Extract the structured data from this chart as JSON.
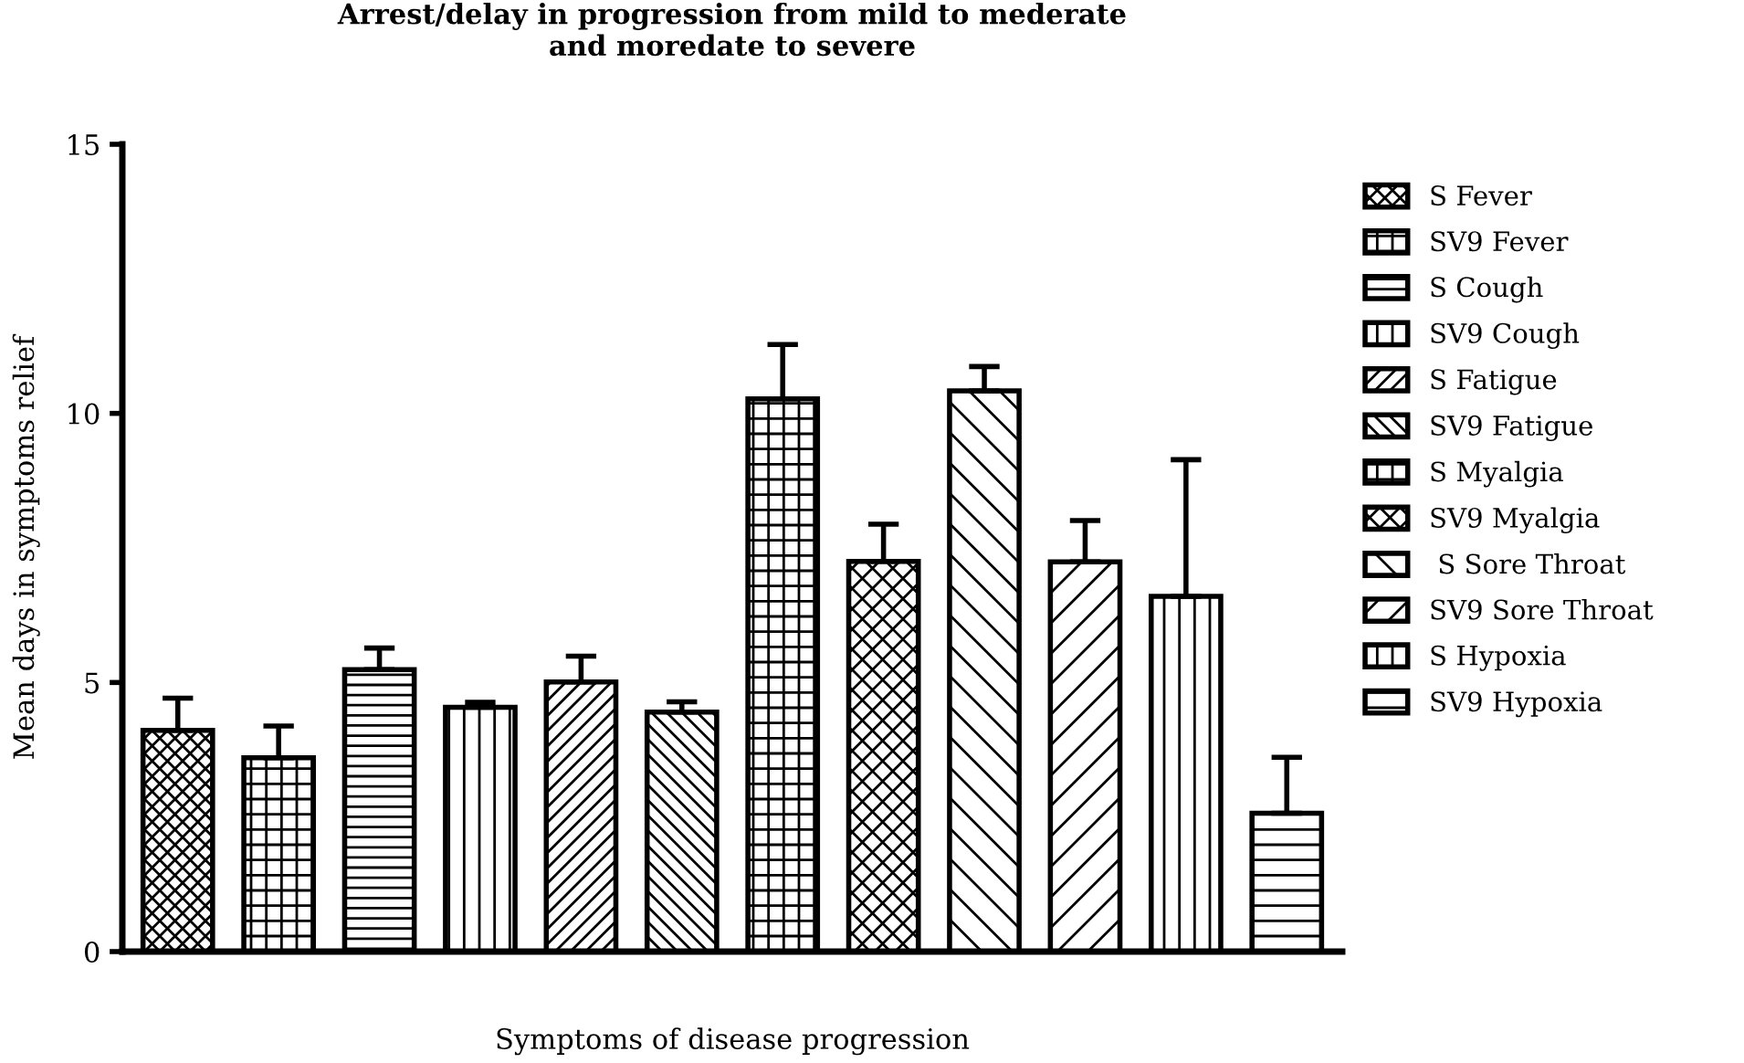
{
  "chart_data": {
    "type": "bar",
    "title": "Arrest/delay in progression from mild to mederate\nand moredate to severe",
    "xlabel": "Symptoms of disease progression",
    "ylabel": "Mean days in symptoms relief",
    "categories": [
      null,
      null,
      null,
      null,
      null,
      null,
      null,
      null,
      null,
      null,
      null,
      null
    ],
    "series": [
      {
        "name": "S Fever",
        "color": "#000000",
        "values": [
          4.11,
          null,
          null,
          null,
          null,
          null,
          null,
          null,
          null,
          null,
          null,
          null
        ],
        "errors": [
          [
            4.11,
            4.71
          ],
          null,
          null,
          null,
          null,
          null,
          null,
          null,
          null,
          null,
          null,
          null
        ]
      },
      {
        "name": "SV9 Fever",
        "color": "#000000",
        "values": [
          null,
          3.6,
          null,
          null,
          null,
          null,
          null,
          null,
          null,
          null,
          null,
          null
        ],
        "errors": [
          null,
          [
            3.6,
            4.19
          ],
          null,
          null,
          null,
          null,
          null,
          null,
          null,
          null,
          null,
          null
        ]
      },
      {
        "name": "S Cough",
        "color": "#000000",
        "values": [
          null,
          null,
          5.24,
          null,
          null,
          null,
          null,
          null,
          null,
          null,
          null,
          null
        ],
        "errors": [
          null,
          null,
          [
            5.24,
            5.64
          ],
          null,
          null,
          null,
          null,
          null,
          null,
          null,
          null,
          null
        ]
      },
      {
        "name": "SV9 Cough",
        "color": "#000000",
        "values": [
          null,
          null,
          null,
          4.54,
          null,
          null,
          null,
          null,
          null,
          null,
          null,
          null
        ],
        "errors": [
          null,
          null,
          null,
          [
            4.54,
            4.63
          ],
          null,
          null,
          null,
          null,
          null,
          null,
          null,
          null
        ]
      },
      {
        "name": "S Fatigue",
        "color": "#000000",
        "values": [
          null,
          null,
          null,
          null,
          5.01,
          null,
          null,
          null,
          null,
          null,
          null,
          null
        ],
        "errors": [
          null,
          null,
          null,
          null,
          [
            5.01,
            5.49
          ],
          null,
          null,
          null,
          null,
          null,
          null,
          null
        ]
      },
      {
        "name": "SV9 Fatigue",
        "color": "#000000",
        "values": [
          null,
          null,
          null,
          null,
          null,
          4.45,
          null,
          null,
          null,
          null,
          null,
          null
        ],
        "errors": [
          null,
          null,
          null,
          null,
          null,
          [
            4.45,
            4.64
          ],
          null,
          null,
          null,
          null,
          null,
          null
        ]
      },
      {
        "name": "S Myalgia",
        "color": "#000000",
        "values": [
          null,
          null,
          null,
          null,
          null,
          null,
          10.27,
          null,
          null,
          null,
          null,
          null
        ],
        "errors": [
          null,
          null,
          null,
          null,
          null,
          null,
          [
            10.27,
            11.28
          ],
          null,
          null,
          null,
          null,
          null
        ]
      },
      {
        "name": "SV9 Myalgia",
        "color": "#000000",
        "values": [
          null,
          null,
          null,
          null,
          null,
          null,
          null,
          7.25,
          null,
          null,
          null,
          null
        ],
        "errors": [
          null,
          null,
          null,
          null,
          null,
          null,
          null,
          [
            7.25,
            7.94
          ],
          null,
          null,
          null,
          null
        ]
      },
      {
        "name": " S Sore Throat",
        "color": "#000000",
        "values": [
          null,
          null,
          null,
          null,
          null,
          null,
          null,
          null,
          10.42,
          null,
          null,
          null
        ],
        "errors": [
          null,
          null,
          null,
          null,
          null,
          null,
          null,
          null,
          [
            10.42,
            10.87
          ],
          null,
          null,
          null
        ]
      },
      {
        "name": "SV9 Sore Throat",
        "color": "#000000",
        "values": [
          null,
          null,
          null,
          null,
          null,
          null,
          null,
          null,
          null,
          7.24,
          null,
          null
        ],
        "errors": [
          null,
          null,
          null,
          null,
          null,
          null,
          null,
          null,
          null,
          [
            7.24,
            8.01
          ],
          null,
          null
        ]
      },
      {
        "name": "S Hypoxia",
        "color": "#000000",
        "values": [
          null,
          null,
          null,
          null,
          null,
          null,
          null,
          null,
          null,
          null,
          6.6,
          null
        ],
        "errors": [
          null,
          null,
          null,
          null,
          null,
          null,
          null,
          null,
          null,
          null,
          [
            6.6,
            9.14
          ],
          null
        ]
      },
      {
        "name": "SV9 Hypoxia",
        "color": "#000000",
        "values": [
          null,
          null,
          null,
          null,
          null,
          null,
          null,
          null,
          null,
          null,
          null,
          2.57
        ],
        "errors": [
          null,
          null,
          null,
          null,
          null,
          null,
          null,
          null,
          null,
          null,
          null,
          [
            2.57,
            3.61
          ]
        ]
      }
    ],
    "ylim": [
      0,
      15
    ],
    "yticks": [
      0,
      5,
      10,
      15
    ],
    "tick_labels": "y",
    "grid": false,
    "legend": "right"
  }
}
